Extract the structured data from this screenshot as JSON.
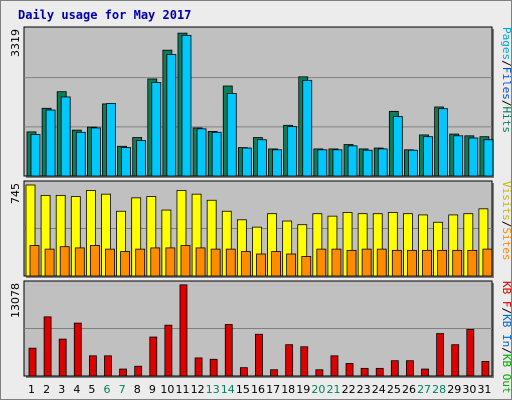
{
  "title": "Daily usage for May 2017",
  "colors": {
    "pages": "#0c7d5b",
    "files": "#1e90ff",
    "hits": "#00c8ff",
    "visits": "#ffff00",
    "sites": "#ff8c00",
    "kbin": "#0066cc",
    "kbout": "#00aa00",
    "kbf": "#dd0000",
    "panel_bg": "#c0c0c0",
    "weekend_label": "#008060",
    "weekday_label": "#000000"
  },
  "legend": {
    "top": [
      {
        "text": "Pages",
        "color": "#00aacc"
      },
      {
        "text": "/",
        "color": "#000000"
      },
      {
        "text": "Files",
        "color": "#0050c8"
      },
      {
        "text": "/",
        "color": "#000000"
      },
      {
        "text": "Hits",
        "color": "#008060"
      }
    ],
    "middle": [
      {
        "text": "Visits",
        "color": "#c8b400"
      },
      {
        "text": "/",
        "color": "#000000"
      },
      {
        "text": "Sites",
        "color": "#ff8c00"
      }
    ],
    "bottom": [
      {
        "text": "KB F",
        "color": "#dd0000"
      },
      {
        "text": "/",
        "color": "#000000"
      },
      {
        "text": "KB In",
        "color": "#0066cc"
      },
      {
        "text": "/",
        "color": "#000000"
      },
      {
        "text": "KB Out",
        "color": "#00aa00"
      }
    ]
  },
  "chart_data": [
    {
      "type": "bar",
      "panel": "hits",
      "max_label": "3319",
      "ylim": [
        0,
        3319
      ],
      "categories": [
        "1",
        "2",
        "3",
        "4",
        "5",
        "6",
        "7",
        "8",
        "9",
        "10",
        "11",
        "12",
        "13",
        "14",
        "15",
        "16",
        "17",
        "18",
        "19",
        "20",
        "21",
        "22",
        "23",
        "24",
        "25",
        "26",
        "27",
        "28",
        "29",
        "30",
        "31"
      ],
      "weekend_days": [
        "6",
        "7",
        "13",
        "14",
        "20",
        "21",
        "27",
        "28"
      ],
      "series": [
        {
          "name": "Pages",
          "values": [
            1010,
            1550,
            1930,
            1050,
            1120,
            1650,
            680,
            880,
            2220,
            2880,
            3270,
            1100,
            1020,
            2060,
            650,
            880,
            620,
            1160,
            2270,
            620,
            620,
            720,
            620,
            640,
            1480,
            600,
            940,
            1580,
            960,
            920,
            900
          ]
        },
        {
          "name": "Hits",
          "values": [
            950,
            1510,
            1810,
            1000,
            1100,
            1660,
            650,
            810,
            2140,
            2780,
            3220,
            1080,
            1000,
            1890,
            640,
            830,
            600,
            1130,
            2190,
            600,
            600,
            690,
            590,
            620,
            1360,
            590,
            900,
            1540,
            920,
            870,
            830
          ]
        }
      ]
    },
    {
      "type": "bar",
      "panel": "visits",
      "max_label": "745",
      "ylim": [
        0,
        745
      ],
      "series": [
        {
          "name": "Visits",
          "values": [
            745,
            660,
            660,
            650,
            700,
            670,
            530,
            640,
            650,
            540,
            700,
            670,
            620,
            530,
            460,
            400,
            510,
            450,
            420,
            510,
            490,
            520,
            510,
            510,
            520,
            510,
            500,
            440,
            500,
            510,
            550
          ]
        },
        {
          "name": "Sites",
          "values": [
            250,
            220,
            240,
            230,
            250,
            220,
            200,
            220,
            230,
            230,
            250,
            230,
            220,
            220,
            200,
            180,
            200,
            180,
            160,
            220,
            220,
            210,
            220,
            220,
            210,
            210,
            210,
            210,
            210,
            210,
            220
          ]
        }
      ]
    },
    {
      "type": "bar",
      "panel": "kbf",
      "max_label": "13078",
      "ylim": [
        0,
        13078
      ],
      "series": [
        {
          "name": "KB F",
          "values": [
            4000,
            8500,
            5300,
            7600,
            2900,
            2900,
            1000,
            1400,
            5600,
            7300,
            13100,
            2600,
            2400,
            7400,
            1200,
            6000,
            900,
            4500,
            4200,
            900,
            2900,
            1800,
            1100,
            1100,
            2200,
            2200,
            1000,
            6100,
            4500,
            6700,
            2100
          ]
        }
      ]
    }
  ]
}
